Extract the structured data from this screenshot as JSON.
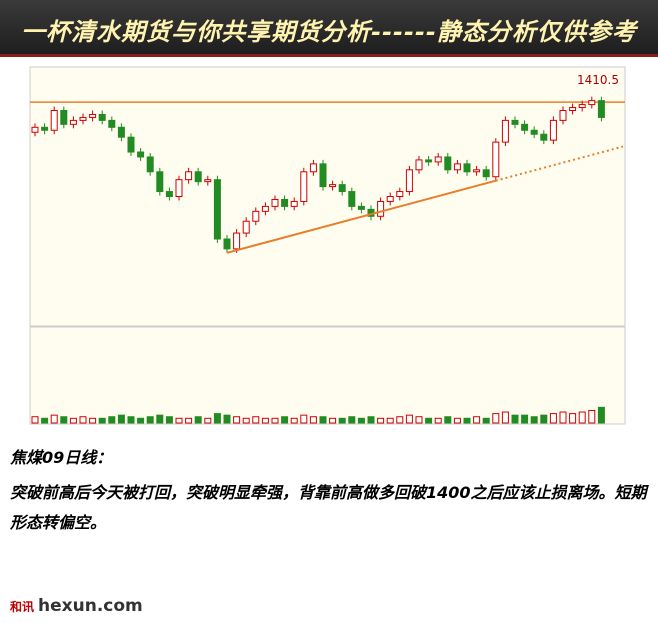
{
  "header": {
    "title": "一杯清水期货与你共享期货分析------静态分析仅供参考"
  },
  "chart_data": {
    "type": "candlestick",
    "open": [
      1380,
      1385,
      1382,
      1402,
      1388,
      1392,
      1395,
      1398,
      1392,
      1385,
      1375,
      1360,
      1355,
      1340,
      1320,
      1315,
      1332,
      1340,
      1330,
      1332,
      1272,
      1262,
      1278,
      1290,
      1300,
      1305,
      1312,
      1305,
      1310,
      1340,
      1348,
      1325,
      1327,
      1320,
      1305,
      1302,
      1295,
      1310,
      1315,
      1320,
      1342,
      1352,
      1350,
      1355,
      1342,
      1348,
      1340,
      1342,
      1335,
      1370,
      1392,
      1388,
      1382,
      1378,
      1372,
      1392,
      1402,
      1405,
      1408,
      1412
    ],
    "high": [
      1389,
      1389,
      1406,
      1406,
      1396,
      1399,
      1402,
      1402,
      1396,
      1389,
      1379,
      1364,
      1359,
      1344,
      1324,
      1336,
      1344,
      1344,
      1336,
      1336,
      1276,
      1282,
      1294,
      1304,
      1309,
      1316,
      1316,
      1314,
      1344,
      1352,
      1352,
      1331,
      1331,
      1324,
      1309,
      1306,
      1314,
      1319,
      1324,
      1346,
      1356,
      1356,
      1359,
      1359,
      1352,
      1352,
      1346,
      1346,
      1374,
      1396,
      1396,
      1392,
      1386,
      1382,
      1396,
      1406,
      1409,
      1412,
      1416,
      1416
    ],
    "low": [
      1376,
      1378,
      1378,
      1384,
      1384,
      1388,
      1391,
      1388,
      1381,
      1371,
      1356,
      1351,
      1336,
      1316,
      1311,
      1311,
      1328,
      1326,
      1326,
      1268,
      1258,
      1258,
      1274,
      1286,
      1296,
      1301,
      1301,
      1301,
      1306,
      1336,
      1321,
      1321,
      1316,
      1301,
      1298,
      1291,
      1291,
      1306,
      1311,
      1316,
      1338,
      1346,
      1346,
      1338,
      1338,
      1336,
      1336,
      1331,
      1331,
      1366,
      1384,
      1378,
      1374,
      1368,
      1368,
      1388,
      1398,
      1401,
      1404,
      1391
    ],
    "close": [
      1385,
      1382,
      1402,
      1388,
      1392,
      1395,
      1398,
      1392,
      1385,
      1375,
      1360,
      1355,
      1340,
      1320,
      1315,
      1332,
      1340,
      1330,
      1332,
      1272,
      1262,
      1278,
      1290,
      1300,
      1305,
      1312,
      1305,
      1310,
      1340,
      1348,
      1325,
      1327,
      1320,
      1305,
      1302,
      1295,
      1310,
      1315,
      1320,
      1342,
      1352,
      1350,
      1355,
      1342,
      1348,
      1340,
      1342,
      1335,
      1370,
      1392,
      1388,
      1382,
      1378,
      1372,
      1392,
      1402,
      1405,
      1408,
      1412,
      1395
    ],
    "volume": [
      4,
      3,
      5,
      4,
      3,
      4,
      3,
      3,
      4,
      5,
      4,
      3,
      4,
      5,
      4,
      3,
      3,
      4,
      3,
      6,
      5,
      4,
      3,
      4,
      3,
      3,
      4,
      3,
      5,
      4,
      4,
      3,
      3,
      4,
      3,
      4,
      3,
      3,
      4,
      5,
      4,
      3,
      3,
      4,
      3,
      3,
      4,
      3,
      6,
      7,
      5,
      5,
      4,
      5,
      6,
      7,
      6,
      7,
      8,
      10
    ],
    "ylim": [
      1185,
      1445
    ],
    "volume_ylim": [
      0,
      60
    ],
    "up_color": "#d00000",
    "down_color": "#228b22",
    "hline": 1410.5,
    "hline_color": "#e87d2a",
    "trendline": {
      "start_index": 20,
      "start_price": 1258,
      "end_index": 48,
      "end_price": 1331
    }
  },
  "caption": {
    "heading": "焦煤09日线：",
    "body": "突破前高后今天被打回，突破明显牵强，背靠前高做多回破1400之后应该止损离场。短期形态转偏空。"
  },
  "footer": {
    "mark": "和讯",
    "logo": "hexun.com"
  }
}
